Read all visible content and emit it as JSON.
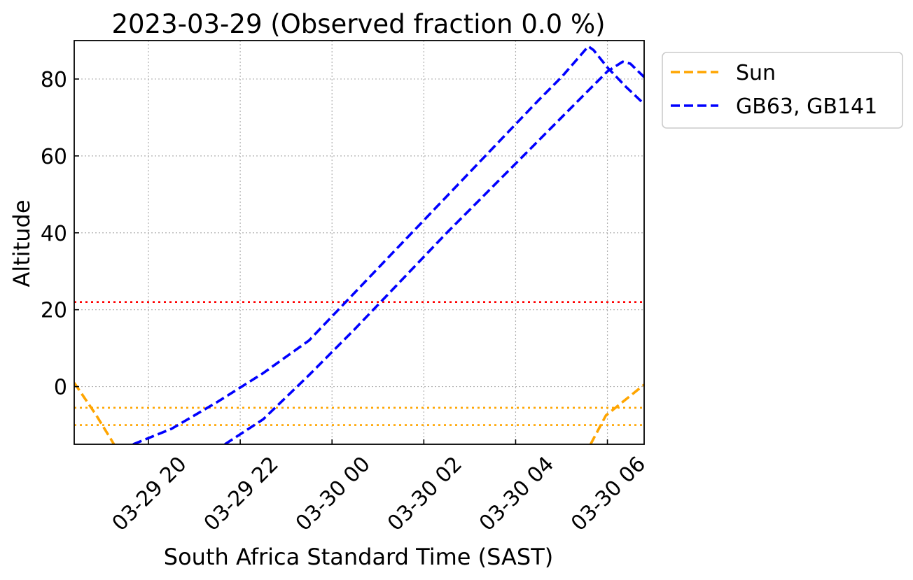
{
  "chart_data": {
    "type": "line",
    "title": "2023-03-29 (Observed fraction 0.0 %)",
    "xlabel": "South Africa Standard Time (SAST)",
    "ylabel": "Altitude",
    "xlim": [
      "2023-03-29 18:23",
      "2023-03-30 06:48"
    ],
    "ylim": [
      -15,
      90
    ],
    "x_ticks": [
      "03-29 20",
      "03-29 22",
      "03-30 00",
      "03-30 02",
      "03-30 04",
      "03-30 06"
    ],
    "x_tick_times": [
      "2023-03-29 20:00",
      "2023-03-29 22:00",
      "2023-03-30 00:00",
      "2023-03-30 02:00",
      "2023-03-30 04:00",
      "2023-03-30 06:00"
    ],
    "y_ticks": [
      0,
      20,
      40,
      60,
      80
    ],
    "grid": true,
    "legend_position": "outside-top-right",
    "legend": [
      "Sun",
      "GB63, GB141"
    ],
    "series": [
      {
        "name": "Sun",
        "color": "#FFA500",
        "style": "dashed",
        "segments": [
          [
            [
              "2023-03-29 18:23",
              1
            ],
            [
              "2023-03-29 18:52",
              -7.5
            ],
            [
              "2023-03-29 19:15",
              -15
            ]
          ],
          [
            [
              "2023-03-30 05:38",
              -15
            ],
            [
              "2023-03-30 05:58",
              -7.5
            ],
            [
              "2023-03-30 06:48",
              0.5
            ]
          ]
        ]
      },
      {
        "name": "GB63, GB141",
        "color": "#0000FF",
        "style": "dashed",
        "segments": [
          [
            [
              "2023-03-29 19:40",
              -15
            ],
            [
              "2023-03-29 20:30",
              -11
            ],
            [
              "2023-03-29 21:30",
              -4
            ],
            [
              "2023-03-29 22:30",
              3.5
            ],
            [
              "2023-03-29 23:30",
              12
            ],
            [
              "2023-03-30 00:30",
              24.5
            ],
            [
              "2023-03-30 01:30",
              37
            ],
            [
              "2023-03-30 02:30",
              49.5
            ],
            [
              "2023-03-30 03:30",
              62
            ],
            [
              "2023-03-30 04:30",
              74.5
            ],
            [
              "2023-03-30 05:00",
              80.5
            ],
            [
              "2023-03-30 05:22",
              85.5
            ],
            [
              "2023-03-30 05:35",
              88.5
            ],
            [
              "2023-03-30 05:42",
              87.5
            ],
            [
              "2023-03-30 06:00",
              83
            ],
            [
              "2023-03-30 06:24",
              78
            ],
            [
              "2023-03-30 06:48",
              73.5
            ]
          ],
          [
            [
              "2023-03-29 21:40",
              -15
            ],
            [
              "2023-03-29 22:30",
              -8.5
            ],
            [
              "2023-03-29 23:30",
              3
            ],
            [
              "2023-03-30 00:30",
              15
            ],
            [
              "2023-03-30 01:30",
              27.5
            ],
            [
              "2023-03-30 02:30",
              40
            ],
            [
              "2023-03-30 03:30",
              52
            ],
            [
              "2023-03-30 04:30",
              64
            ],
            [
              "2023-03-30 05:30",
              76
            ],
            [
              "2023-03-30 06:00",
              82
            ],
            [
              "2023-03-30 06:20",
              84.5
            ],
            [
              "2023-03-30 06:30",
              84
            ],
            [
              "2023-03-30 06:48",
              80.5
            ]
          ]
        ]
      }
    ],
    "reference_lines": [
      {
        "y": 22,
        "color": "#FF0000",
        "style": "dotted"
      },
      {
        "y": -5.5,
        "color": "#FFA500",
        "style": "dotted"
      },
      {
        "y": -10,
        "color": "#FFA500",
        "style": "dotted"
      }
    ]
  }
}
